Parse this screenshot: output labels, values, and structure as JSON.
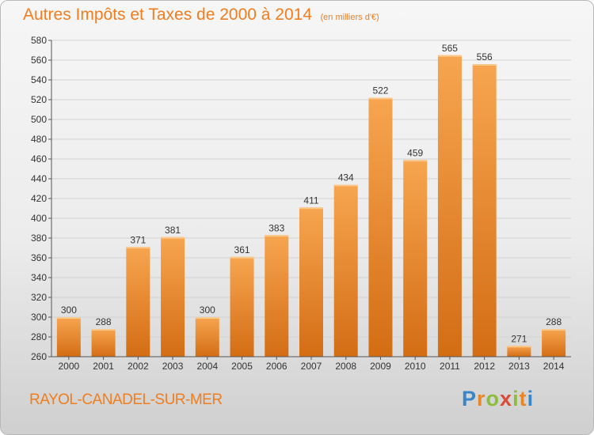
{
  "header": {
    "title": "Autres Impôts et Taxes de 2000 à 2014",
    "subtitle": "(en milliers d'€)"
  },
  "footer": {
    "commune": "RAYOL-CANADEL-SUR-MER",
    "brand": "Proxiti"
  },
  "colors": {
    "accent": "#f07d1e",
    "bar_top": "#f7a550",
    "bar_bottom": "#d36d14",
    "grid": "#d2d2d2"
  },
  "chart_data": {
    "type": "bar",
    "title": "Autres Impôts et Taxes de 2000 à 2014",
    "subtitle": "(en milliers d'€)",
    "xlabel": "",
    "ylabel": "",
    "categories": [
      "2000",
      "2001",
      "2002",
      "2003",
      "2004",
      "2005",
      "2006",
      "2007",
      "2008",
      "2009",
      "2010",
      "2011",
      "2012",
      "2013",
      "2014"
    ],
    "values": [
      300,
      288,
      371,
      381,
      300,
      361,
      383,
      411,
      434,
      522,
      459,
      565,
      556,
      271,
      288
    ],
    "ylim": [
      260,
      580
    ],
    "yticks": [
      260,
      280,
      300,
      320,
      340,
      360,
      380,
      400,
      420,
      440,
      460,
      480,
      500,
      520,
      540,
      560,
      580
    ],
    "grid": true,
    "data_labels": true
  }
}
